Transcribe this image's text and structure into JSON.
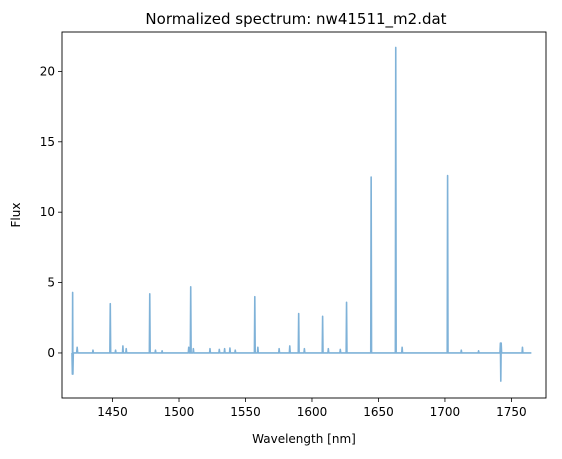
{
  "chart_data": {
    "type": "line",
    "title": "Normalized spectrum: nw41511_m2.dat",
    "xlabel": "Wavelength [nm]",
    "ylabel": "Flux",
    "xlim": [
      1412,
      1776
    ],
    "ylim": [
      -3.2,
      22.8
    ],
    "xticks": [
      1450,
      1500,
      1550,
      1600,
      1650,
      1700,
      1750
    ],
    "yticks": [
      0,
      5,
      10,
      15,
      20
    ],
    "grid": false,
    "series": [
      {
        "color": "#7fb2d8",
        "x": [
          1419.5,
          1419.8,
          1420.0,
          1420.2,
          1420.5,
          1421.0,
          1423.0,
          1423.4,
          1423.8,
          1430,
          1435.0,
          1435.3,
          1435.6,
          1440,
          1448.0,
          1448.3,
          1448.6,
          1452.0,
          1452.3,
          1452.6,
          1457.5,
          1457.8,
          1458.1,
          1460.0,
          1460.3,
          1460.6,
          1465,
          1470,
          1477.7,
          1478.0,
          1478.3,
          1482.0,
          1482.3,
          1482.6,
          1487.0,
          1487.3,
          1487.6,
          1493,
          1500,
          1507.0,
          1507.3,
          1507.6,
          1508.5,
          1508.8,
          1509.1,
          1510.5,
          1510.8,
          1511.1,
          1517,
          1523.0,
          1523.3,
          1523.6,
          1527,
          1530.0,
          1530.3,
          1530.6,
          1534.0,
          1534.3,
          1534.6,
          1538.0,
          1538.3,
          1538.6,
          1542.0,
          1542.3,
          1542.6,
          1548,
          1556.7,
          1557.0,
          1557.3,
          1559.0,
          1559.3,
          1559.6,
          1563,
          1570,
          1575.0,
          1575.3,
          1575.6,
          1580,
          1583.0,
          1583.3,
          1583.6,
          1589.7,
          1590.0,
          1590.3,
          1594.0,
          1594.3,
          1594.6,
          1600,
          1607.7,
          1608.0,
          1608.3,
          1612.0,
          1612.3,
          1612.6,
          1618,
          1621.0,
          1621.3,
          1621.6,
          1625.7,
          1626.0,
          1626.3,
          1632,
          1638,
          1644.2,
          1644.5,
          1644.8,
          1650,
          1655,
          1662.7,
          1663.0,
          1663.3,
          1667.5,
          1667.8,
          1668.1,
          1673,
          1680,
          1685,
          1690,
          1695,
          1701.7,
          1702.0,
          1702.3,
          1708,
          1712.0,
          1712.3,
          1712.6,
          1720,
          1725.0,
          1725.3,
          1725.6,
          1730,
          1735,
          1741.4,
          1741.7,
          1742.0,
          1742.3,
          1742.6,
          1748,
          1752,
          1758.0,
          1758.3,
          1758.6,
          1762,
          1765
        ],
        "y": [
          0.0,
          -1.5,
          4.3,
          -1.5,
          0.0,
          0.0,
          0.0,
          0.4,
          0.0,
          0.0,
          0.0,
          0.2,
          0.0,
          0.0,
          0.0,
          3.5,
          0.0,
          0.0,
          0.2,
          0.0,
          0.0,
          0.5,
          0.0,
          0.0,
          0.3,
          0.0,
          0.0,
          0.0,
          0.0,
          4.2,
          0.0,
          0.0,
          0.2,
          0.0,
          0.0,
          0.15,
          0.0,
          0.0,
          0.0,
          0.0,
          0.4,
          0.0,
          0.0,
          4.7,
          0.0,
          0.0,
          0.3,
          0.0,
          0.0,
          0.0,
          0.3,
          0.0,
          0.0,
          0.0,
          0.25,
          0.0,
          0.0,
          0.3,
          0.0,
          0.0,
          0.35,
          0.0,
          0.0,
          0.2,
          0.0,
          0.0,
          0.0,
          4.0,
          0.0,
          0.0,
          0.4,
          0.0,
          0.0,
          0.0,
          0.0,
          0.3,
          0.0,
          0.0,
          0.0,
          0.5,
          0.0,
          0.0,
          2.8,
          0.0,
          0.0,
          0.3,
          0.0,
          0.0,
          0.0,
          2.6,
          0.0,
          0.0,
          0.3,
          0.0,
          0.0,
          0.0,
          0.25,
          0.0,
          0.0,
          3.6,
          0.0,
          0.0,
          0.0,
          0.0,
          12.5,
          0.0,
          0.0,
          0.0,
          0.0,
          21.7,
          0.0,
          0.0,
          0.4,
          0.0,
          0.0,
          0.0,
          0.0,
          0.0,
          0.0,
          0.0,
          12.6,
          0.0,
          0.0,
          0.0,
          0.2,
          0.0,
          0.0,
          0.0,
          0.15,
          0.0,
          0.0,
          0.0,
          0.0,
          0.7,
          -2.0,
          0.7,
          0.0,
          0.0,
          0.0,
          0.0,
          0.4,
          0.0,
          0.0,
          0.0
        ]
      }
    ]
  }
}
